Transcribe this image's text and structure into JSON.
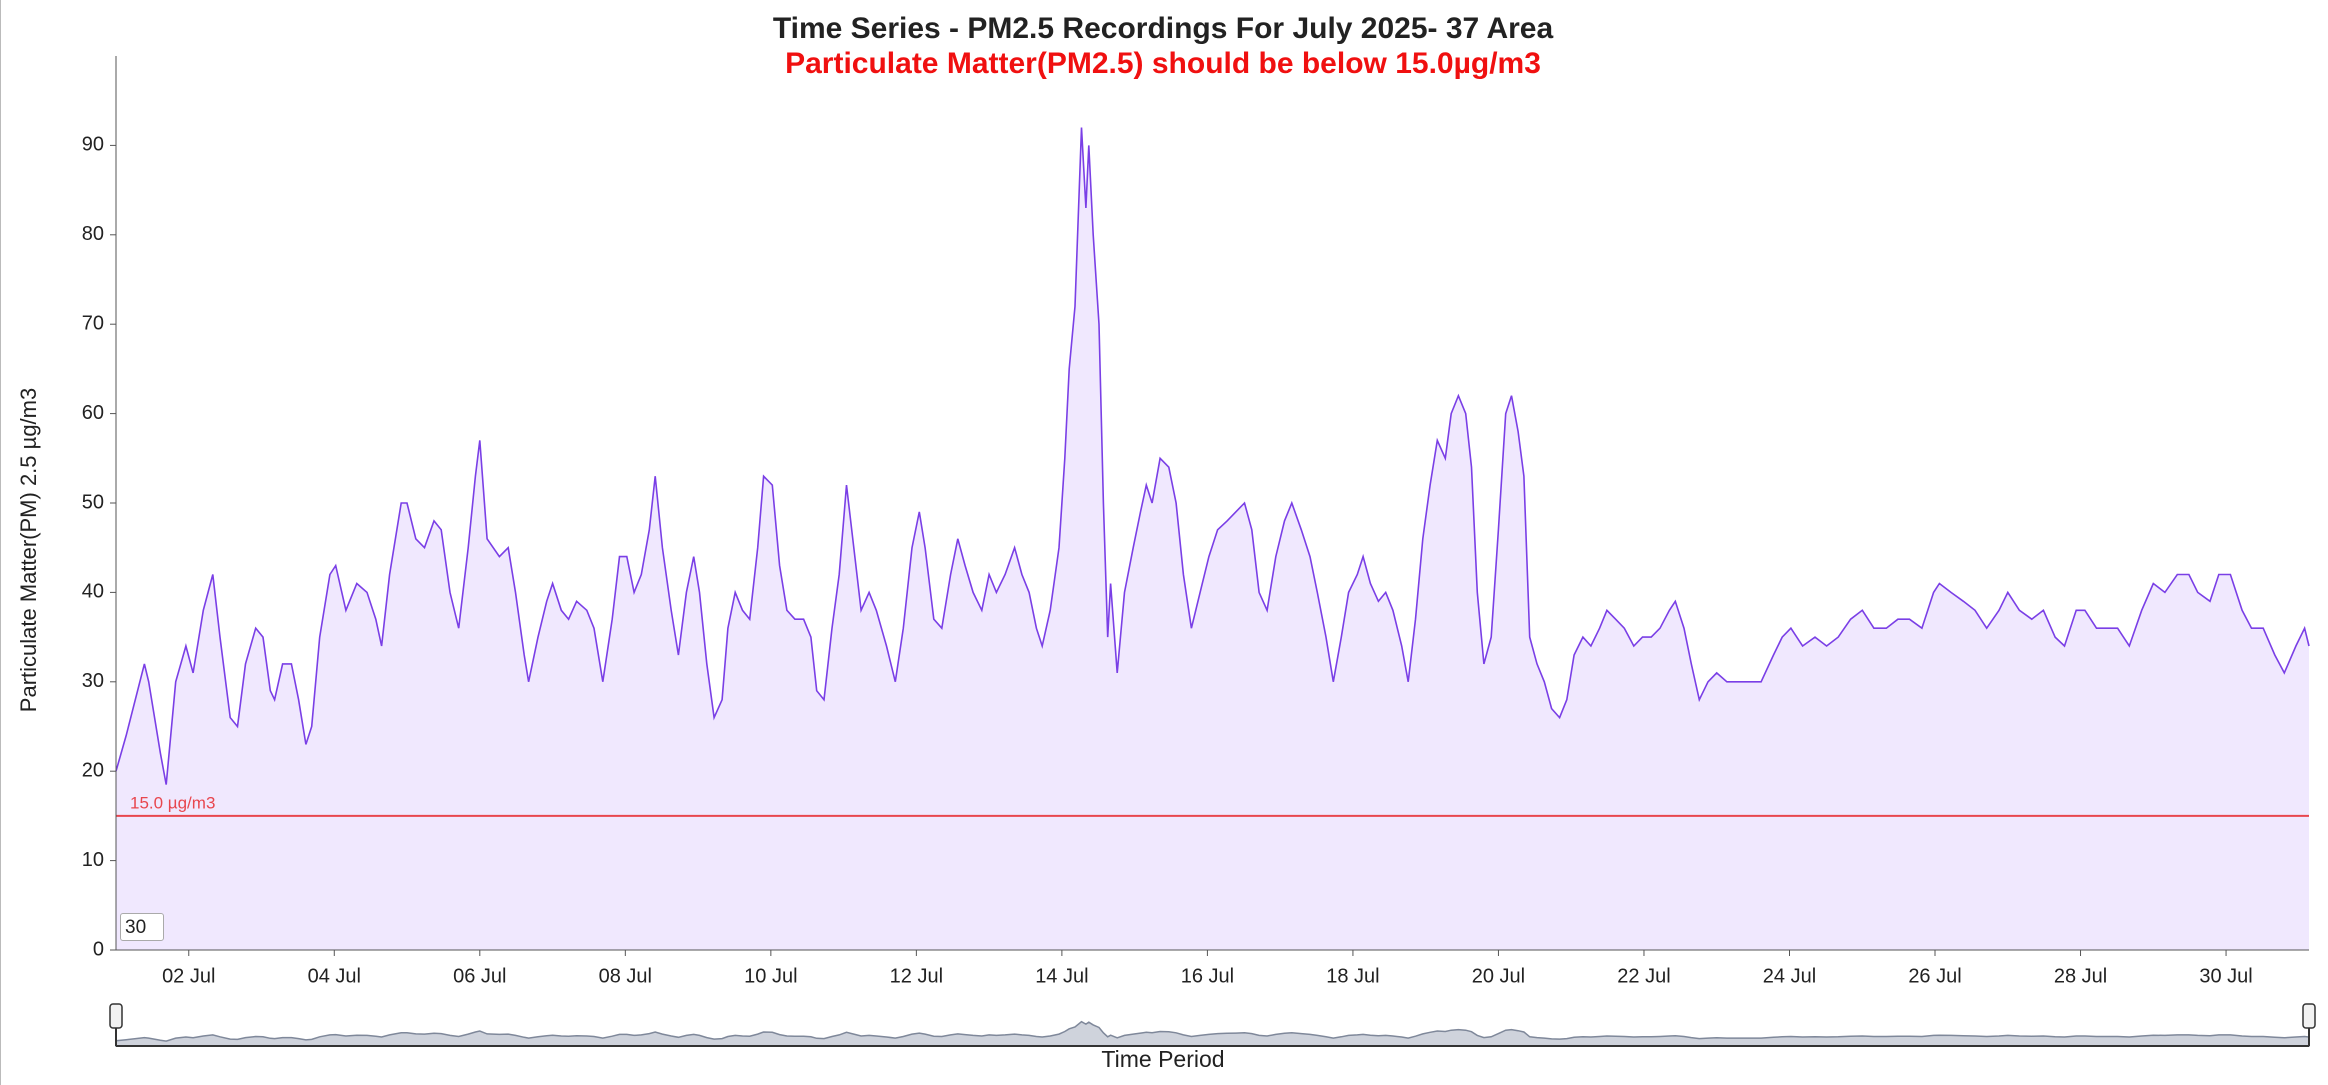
{
  "chart_data": {
    "type": "area",
    "title": "Time Series - PM2.5 Recordings For July 2025- 37 Area",
    "subtitle": "Particulate Matter(PM2.5) should be below 15.0µg/m3",
    "y_label": "Particulate Matter(PM) 2.5 µg/m3",
    "x_label": "Time Period",
    "color": "#7a3fe6",
    "fill_color": "#f0e8fe",
    "threshold": {
      "value": 15,
      "label": "15.0 µg/m3",
      "color": "#e8464e"
    },
    "range_input": "30",
    "xlim": [
      1,
      31.14
    ],
    "ylim": [
      0,
      100
    ],
    "yticks": [
      0,
      10,
      20,
      30,
      40,
      50,
      60,
      70,
      80,
      90
    ],
    "xticks": [
      {
        "value": 2,
        "label": "02 Jul"
      },
      {
        "value": 4,
        "label": "04 Jul"
      },
      {
        "value": 6,
        "label": "06 Jul"
      },
      {
        "value": 8,
        "label": "08 Jul"
      },
      {
        "value": 10,
        "label": "10 Jul"
      },
      {
        "value": 12,
        "label": "12 Jul"
      },
      {
        "value": 14,
        "label": "14 Jul"
      },
      {
        "value": 16,
        "label": "16 Jul"
      },
      {
        "value": 18,
        "label": "18 Jul"
      },
      {
        "value": 20,
        "label": "20 Jul"
      },
      {
        "value": 22,
        "label": "22 Jul"
      },
      {
        "value": 24,
        "label": "24 Jul"
      },
      {
        "value": 26,
        "label": "26 Jul"
      },
      {
        "value": 28,
        "label": "28 Jul"
      },
      {
        "value": 30,
        "label": "30 Jul"
      }
    ],
    "x": [
      1.0,
      1.14,
      1.39,
      1.45,
      1.61,
      1.69,
      1.82,
      1.96,
      2.06,
      2.2,
      2.33,
      2.43,
      2.57,
      2.67,
      2.78,
      2.92,
      3.02,
      3.12,
      3.18,
      3.29,
      3.41,
      3.51,
      3.61,
      3.69,
      3.8,
      3.94,
      4.02,
      4.16,
      4.31,
      4.45,
      4.57,
      4.65,
      4.76,
      4.92,
      5.0,
      5.12,
      5.24,
      5.37,
      5.47,
      5.59,
      5.71,
      5.84,
      5.94,
      6.0,
      6.1,
      6.27,
      6.39,
      6.49,
      6.61,
      6.67,
      6.8,
      6.92,
      7.0,
      7.12,
      7.22,
      7.33,
      7.47,
      7.57,
      7.69,
      7.82,
      7.92,
      8.02,
      8.12,
      8.22,
      8.33,
      8.41,
      8.51,
      8.63,
      8.73,
      8.84,
      8.94,
      9.02,
      9.12,
      9.22,
      9.33,
      9.41,
      9.51,
      9.61,
      9.71,
      9.82,
      9.9,
      10.02,
      10.12,
      10.22,
      10.33,
      10.45,
      10.55,
      10.63,
      10.73,
      10.84,
      10.94,
      11.04,
      11.14,
      11.24,
      11.35,
      11.45,
      11.59,
      11.71,
      11.82,
      11.94,
      12.04,
      12.12,
      12.24,
      12.35,
      12.47,
      12.57,
      12.67,
      12.78,
      12.9,
      13.0,
      13.1,
      13.22,
      13.35,
      13.45,
      13.55,
      13.65,
      13.73,
      13.84,
      13.96,
      14.04,
      14.1,
      14.18,
      14.27,
      14.33,
      14.37,
      14.43,
      14.51,
      14.57,
      14.63,
      14.67,
      14.76,
      14.86,
      14.98,
      15.08,
      15.16,
      15.24,
      15.35,
      15.47,
      15.57,
      15.67,
      15.78,
      15.9,
      16.02,
      16.14,
      16.27,
      16.39,
      16.51,
      16.61,
      16.71,
      16.82,
      16.94,
      17.06,
      17.16,
      17.29,
      17.41,
      17.51,
      17.63,
      17.73,
      17.84,
      17.94,
      18.06,
      18.14,
      18.24,
      18.35,
      18.45,
      18.55,
      18.67,
      18.76,
      18.86,
      18.96,
      19.06,
      19.16,
      19.27,
      19.35,
      19.45,
      19.55,
      19.63,
      19.71,
      19.8,
      19.9,
      20.0,
      20.1,
      20.18,
      20.27,
      20.35,
      20.43,
      20.53,
      20.63,
      20.73,
      20.84,
      20.94,
      21.04,
      21.16,
      21.27,
      21.39,
      21.49,
      21.61,
      21.73,
      21.86,
      21.98,
      22.1,
      22.22,
      22.35,
      22.43,
      22.55,
      22.65,
      22.76,
      22.88,
      23.0,
      23.14,
      23.29,
      23.45,
      23.61,
      23.78,
      23.9,
      24.02,
      24.18,
      24.35,
      24.51,
      24.67,
      24.84,
      25.0,
      25.16,
      25.33,
      25.49,
      25.65,
      25.82,
      25.98,
      26.06,
      26.22,
      26.39,
      26.55,
      26.71,
      26.88,
      27.0,
      27.16,
      27.33,
      27.49,
      27.65,
      27.78,
      27.94,
      28.06,
      28.22,
      28.39,
      28.51,
      28.67,
      28.84,
      29.0,
      29.16,
      29.33,
      29.49,
      29.61,
      29.78,
      29.9,
      30.06,
      30.22,
      30.35,
      30.51,
      30.67,
      30.8,
      30.96,
      31.08,
      31.14
    ],
    "values": [
      20,
      24,
      32,
      30,
      22,
      18.5,
      30,
      34,
      31,
      38,
      42,
      35,
      26,
      25,
      32,
      36,
      35,
      29,
      28,
      32,
      32,
      28,
      23,
      25,
      35,
      42,
      43,
      38,
      41,
      40,
      37,
      34,
      42,
      50,
      50,
      46,
      45,
      48,
      47,
      40,
      36,
      45,
      53,
      57,
      46,
      44,
      45,
      40,
      33,
      30,
      35,
      39,
      41,
      38,
      37,
      39,
      38,
      36,
      30,
      37,
      44,
      44,
      40,
      42,
      47,
      53,
      45,
      38,
      33,
      40,
      44,
      40,
      32,
      26,
      28,
      36,
      40,
      38,
      37,
      45,
      53,
      52,
      43,
      38,
      37,
      37,
      35,
      29,
      28,
      36,
      42,
      52,
      45,
      38,
      40,
      38,
      34,
      30,
      36,
      45,
      49,
      45,
      37,
      36,
      42,
      46,
      43,
      40,
      38,
      42,
      40,
      42,
      45,
      42,
      40,
      36,
      34,
      38,
      45,
      55,
      65,
      72,
      92,
      83,
      90,
      80,
      70,
      50,
      35,
      41,
      31,
      40,
      45,
      49,
      52,
      50,
      55,
      54,
      50,
      42,
      36,
      40,
      44,
      47,
      48,
      49,
      50,
      47,
      40,
      38,
      44,
      48,
      50,
      47,
      44,
      40,
      35,
      30,
      35,
      40,
      42,
      44,
      41,
      39,
      40,
      38,
      34,
      30,
      37,
      46,
      52,
      57,
      55,
      60,
      62,
      60,
      54,
      40,
      32,
      35,
      47,
      60,
      62,
      58,
      53,
      35,
      32,
      30,
      27,
      26,
      28,
      33,
      35,
      34,
      36,
      38,
      37,
      36,
      34,
      35,
      35,
      36,
      38,
      39,
      36,
      32,
      28,
      30,
      31,
      30,
      30,
      30,
      30,
      33,
      35,
      36,
      34,
      35,
      34,
      35,
      37,
      38,
      36,
      36,
      37,
      37,
      36,
      40,
      41,
      40,
      39,
      38,
      36,
      38,
      40,
      38,
      37,
      38,
      35,
      34,
      38,
      38,
      36,
      36,
      36,
      34,
      38,
      41,
      40,
      42,
      42,
      40,
      39,
      42,
      42,
      38,
      36,
      36,
      33,
      31,
      34,
      36,
      34
    ]
  }
}
